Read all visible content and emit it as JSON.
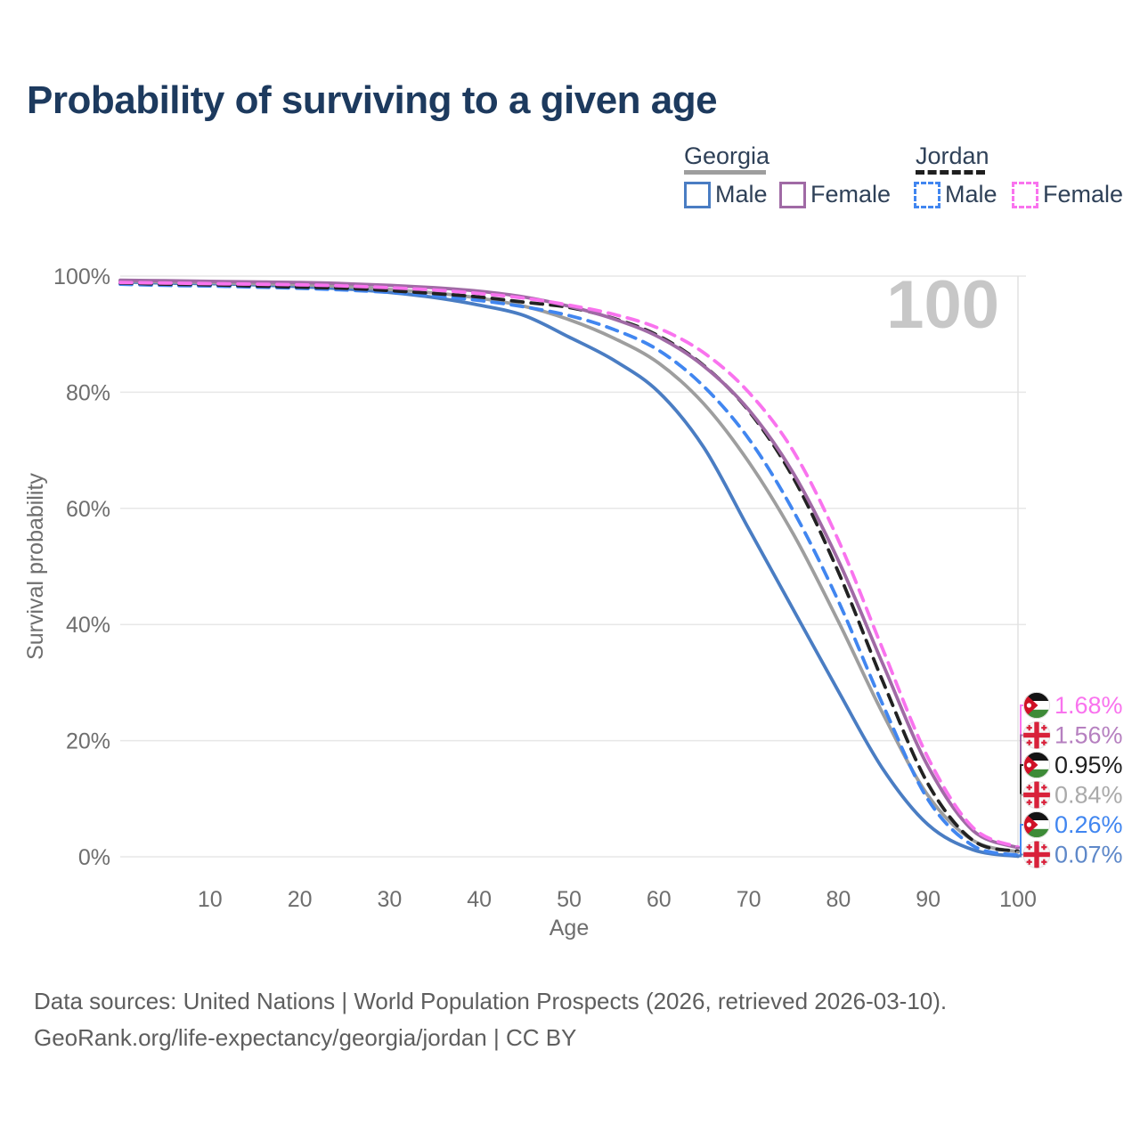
{
  "title": "Probability of surviving to a given age",
  "watermark_age": "100",
  "legend": {
    "groups": [
      {
        "label": "Georgia",
        "underline_style": "solid",
        "underline_color": "#9e9e9e",
        "items": [
          {
            "label": "Male",
            "color": "#4a7dc3",
            "dashed": false
          },
          {
            "label": "Female",
            "color": "#a06aa5",
            "dashed": false
          }
        ]
      },
      {
        "label": "Jordan",
        "underline_style": "dashed",
        "underline_color": "#1f1f1f",
        "items": [
          {
            "label": "Male",
            "color": "#4186f0",
            "dashed": true
          },
          {
            "label": "Female",
            "color": "#f973ee",
            "dashed": true
          }
        ]
      }
    ]
  },
  "chart_data": {
    "type": "line",
    "title": "Probability of surviving to a given age",
    "xlabel": "Age",
    "ylabel": "Survival probability",
    "xlim": [
      0,
      100
    ],
    "ylim": [
      0,
      100
    ],
    "grid": "horizontal",
    "x_ticks": [
      10,
      20,
      30,
      40,
      50,
      60,
      70,
      80,
      90,
      100
    ],
    "y_tick_values": [
      0,
      20,
      40,
      60,
      80,
      100
    ],
    "y_tick_labels": [
      "0%",
      "20%",
      "40%",
      "60%",
      "80%",
      "100%"
    ],
    "current_age_marker": 100,
    "x": [
      0,
      5,
      10,
      15,
      20,
      25,
      30,
      35,
      40,
      45,
      50,
      55,
      60,
      65,
      70,
      75,
      80,
      85,
      90,
      95,
      100
    ],
    "series": [
      {
        "name": "Georgia Male",
        "country": "Georgia",
        "sex": "Male",
        "line_style": "solid",
        "color": "#4a7dc3",
        "label_color": "#5e88c9",
        "end_label": "0.07%",
        "values": [
          99.0,
          98.8,
          98.7,
          98.5,
          98.2,
          97.8,
          97.2,
          96.3,
          95.0,
          93.2,
          89.5,
          85.5,
          80.0,
          70.5,
          56.5,
          42.5,
          28.5,
          15.0,
          5.5,
          1.2,
          0.07
        ]
      },
      {
        "name": "Georgia Both sexes",
        "country": "Georgia",
        "sex": "Both",
        "line_style": "solid",
        "color": "#9e9e9e",
        "label_color": "#aaaaaa",
        "end_label": "0.84%",
        "values": [
          99.2,
          99.0,
          98.9,
          98.7,
          98.5,
          98.2,
          97.7,
          97.1,
          96.2,
          94.8,
          92.5,
          89.3,
          85.0,
          78.0,
          68.0,
          55.5,
          40.5,
          24.5,
          10.5,
          2.8,
          0.84
        ]
      },
      {
        "name": "Jordan Male",
        "country": "Jordan",
        "sex": "Male",
        "line_style": "dashed",
        "color": "#4186f0",
        "label_color": "#4186f0",
        "end_label": "0.26%",
        "values": [
          98.6,
          98.4,
          98.3,
          98.1,
          97.9,
          97.6,
          97.2,
          96.6,
          95.8,
          94.7,
          93.2,
          90.8,
          87.2,
          81.0,
          72.0,
          59.5,
          44.0,
          26.0,
          9.8,
          1.9,
          0.26
        ]
      },
      {
        "name": "Jordan Both sexes",
        "country": "Jordan",
        "sex": "Both",
        "line_style": "dashed",
        "color": "#222222",
        "label_color": "#1f1f1f",
        "end_label": "0.95%",
        "values": [
          98.8,
          98.6,
          98.5,
          98.3,
          98.1,
          97.9,
          97.5,
          97.0,
          96.4,
          95.5,
          94.6,
          92.7,
          89.7,
          84.6,
          76.8,
          65.2,
          49.0,
          30.0,
          12.5,
          2.8,
          0.95
        ]
      },
      {
        "name": "Georgia Female",
        "country": "Georgia",
        "sex": "Female",
        "line_style": "solid",
        "color": "#a06aa5",
        "label_color": "#b680c0",
        "end_label": "1.56%",
        "values": [
          99.3,
          99.2,
          99.1,
          99.0,
          98.9,
          98.7,
          98.4,
          98.0,
          97.4,
          96.4,
          94.8,
          92.6,
          89.5,
          84.5,
          77.0,
          66.0,
          51.0,
          33.0,
          15.5,
          4.5,
          1.56
        ]
      },
      {
        "name": "Jordan Female",
        "country": "Jordan",
        "sex": "Female",
        "line_style": "dashed",
        "color": "#f973ee",
        "label_color": "#f973ee",
        "end_label": "1.68%",
        "values": [
          98.9,
          98.8,
          98.7,
          98.6,
          98.5,
          98.3,
          98.0,
          97.6,
          97.0,
          96.2,
          95.0,
          93.4,
          91.0,
          86.8,
          80.0,
          69.8,
          54.5,
          35.5,
          17.0,
          5.0,
          1.68
        ]
      }
    ]
  },
  "footer": {
    "line1": "Data sources: United Nations | World Population Prospects (2026, retrieved 2026-03-10).",
    "line2": "GeoRank.org/life-expectancy/georgia/jordan | CC BY"
  }
}
